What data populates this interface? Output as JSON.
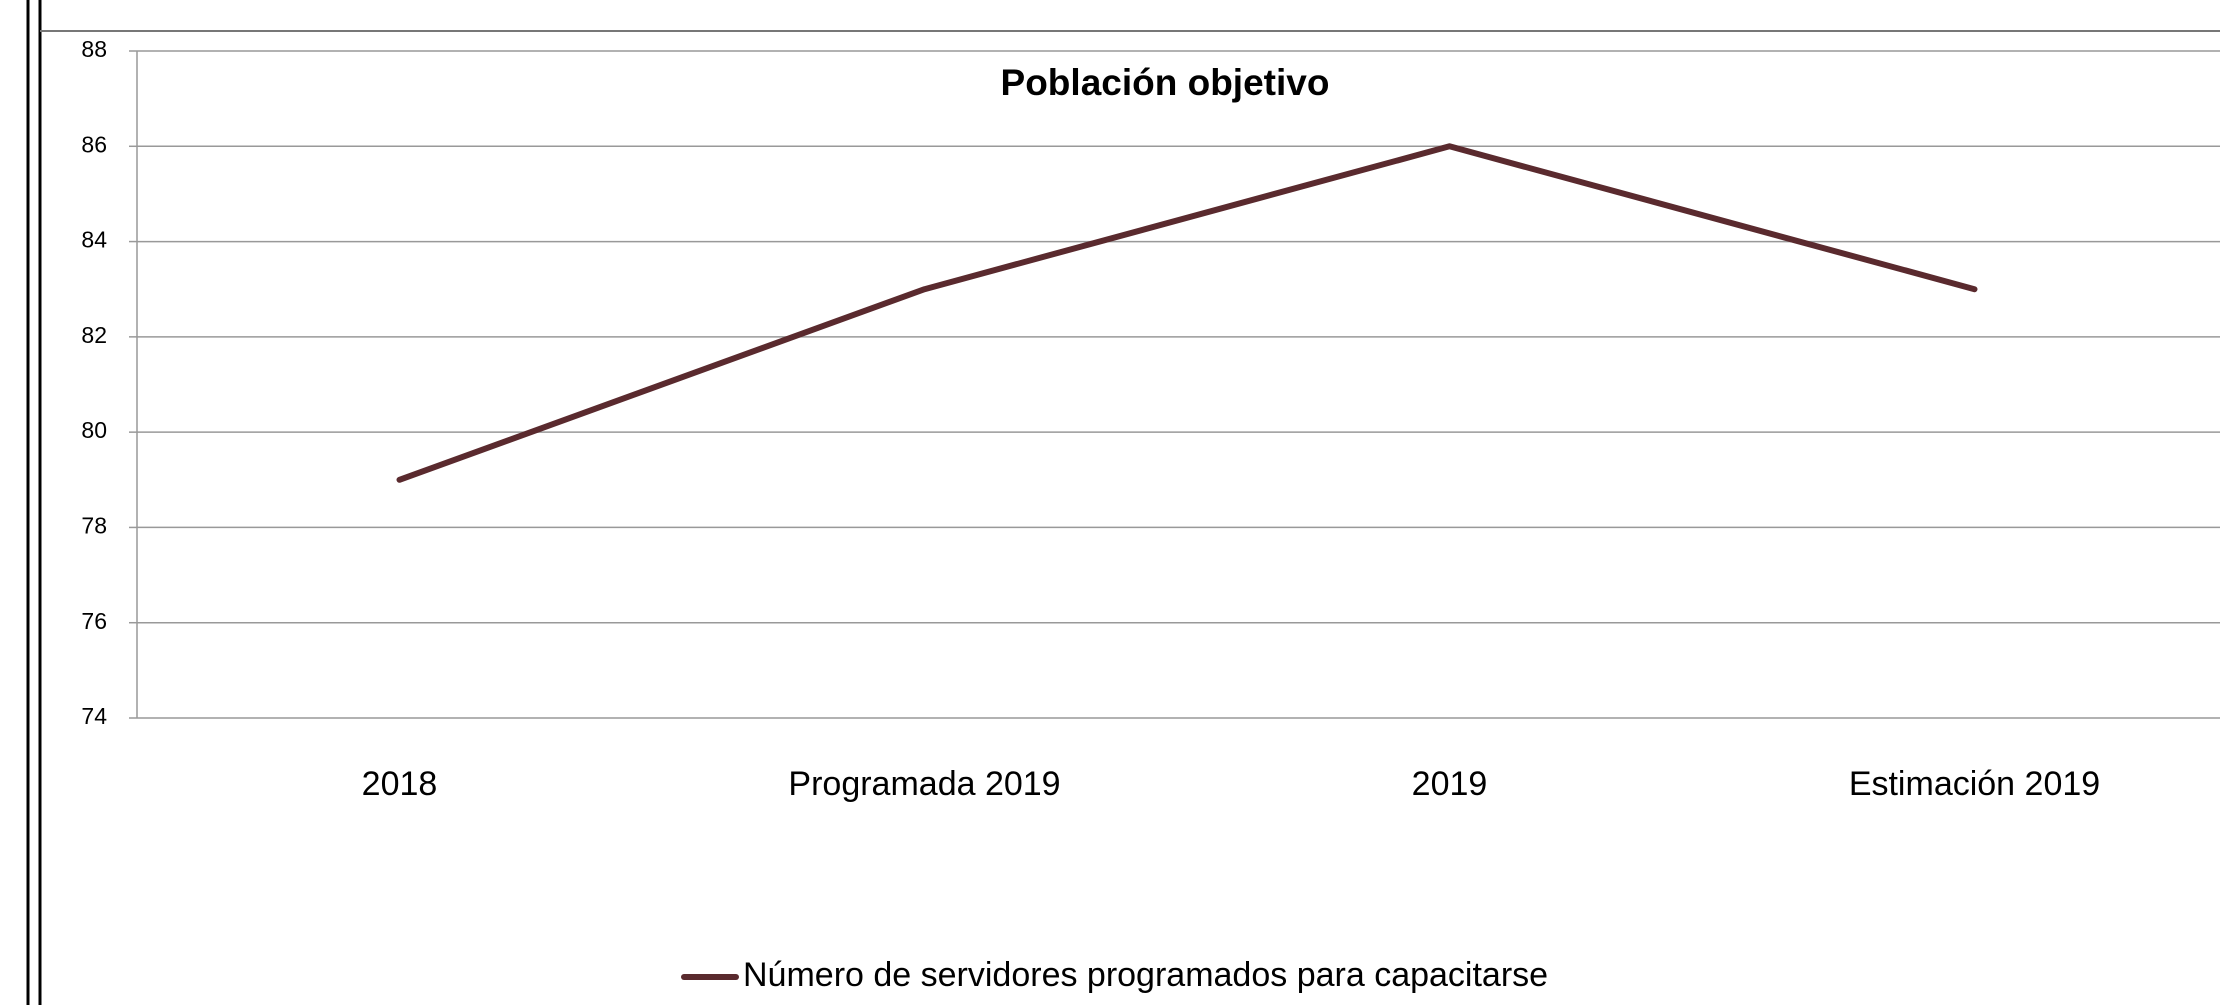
{
  "chart_data": {
    "type": "line",
    "title": "Población objetivo",
    "categories": [
      "2018",
      "Programada 2019",
      "2019",
      "Estimación 2019"
    ],
    "series": [
      {
        "name": "Número de servidores programados para capacitarse",
        "color": "#5a2a2e",
        "values": [
          79,
          83,
          86,
          83
        ]
      }
    ],
    "ylim": [
      74,
      88
    ],
    "yticks": [
      74,
      76,
      78,
      80,
      82,
      84,
      86,
      88
    ],
    "grid": true,
    "legend": "bottom"
  }
}
